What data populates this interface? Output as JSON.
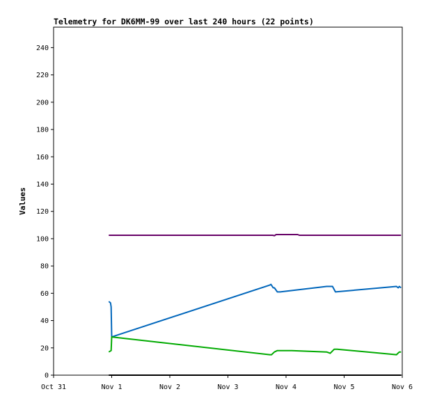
{
  "chart_data": {
    "type": "line",
    "title": "Telemetry for DK6MM-99 over last 240 hours (22 points)",
    "xlabel": "",
    "ylabel": "Values",
    "x_ticks": [
      "Oct 31",
      "Nov 1",
      "Nov 2",
      "Nov 3",
      "Nov 4",
      "Nov 5",
      "Nov 6"
    ],
    "xlim": [
      0,
      6
    ],
    "ylim": [
      0,
      255
    ],
    "y_ticks": [
      0,
      20,
      40,
      60,
      80,
      100,
      120,
      140,
      160,
      180,
      200,
      220,
      240
    ],
    "grid": false,
    "legend": "none",
    "series": [
      {
        "color": "#660066",
        "points": [
          [
            0.95,
            102.5
          ],
          [
            3.77,
            102.5
          ],
          [
            3.8,
            102.2
          ],
          [
            3.83,
            103
          ],
          [
            4.2,
            103
          ],
          [
            4.23,
            102.5
          ],
          [
            5.98,
            102.5
          ]
        ]
      },
      {
        "color": "#0066bb",
        "points": [
          [
            0.95,
            54
          ],
          [
            0.98,
            53
          ],
          [
            0.99,
            50
          ],
          [
            1.0,
            28
          ],
          [
            3.72,
            66
          ],
          [
            3.74,
            66.5
          ],
          [
            3.78,
            64
          ],
          [
            3.8,
            64
          ],
          [
            3.85,
            61
          ],
          [
            3.9,
            61
          ],
          [
            4.7,
            65
          ],
          [
            4.8,
            65
          ],
          [
            4.85,
            61
          ],
          [
            5.9,
            65
          ],
          [
            5.93,
            64
          ],
          [
            5.95,
            65
          ],
          [
            5.98,
            64
          ]
        ]
      },
      {
        "color": "#00aa00",
        "points": [
          [
            0.95,
            17
          ],
          [
            0.99,
            18
          ],
          [
            1.0,
            28
          ],
          [
            3.72,
            15
          ],
          [
            3.75,
            15
          ],
          [
            3.8,
            17
          ],
          [
            3.85,
            18
          ],
          [
            4.1,
            18
          ],
          [
            4.7,
            17
          ],
          [
            4.76,
            16
          ],
          [
            4.83,
            19
          ],
          [
            4.88,
            19
          ],
          [
            5.9,
            15
          ],
          [
            5.95,
            17
          ],
          [
            5.98,
            17
          ]
        ]
      },
      {
        "color": "#000000",
        "points": [
          [
            0.95,
            0
          ],
          [
            5.98,
            0
          ]
        ]
      }
    ]
  }
}
